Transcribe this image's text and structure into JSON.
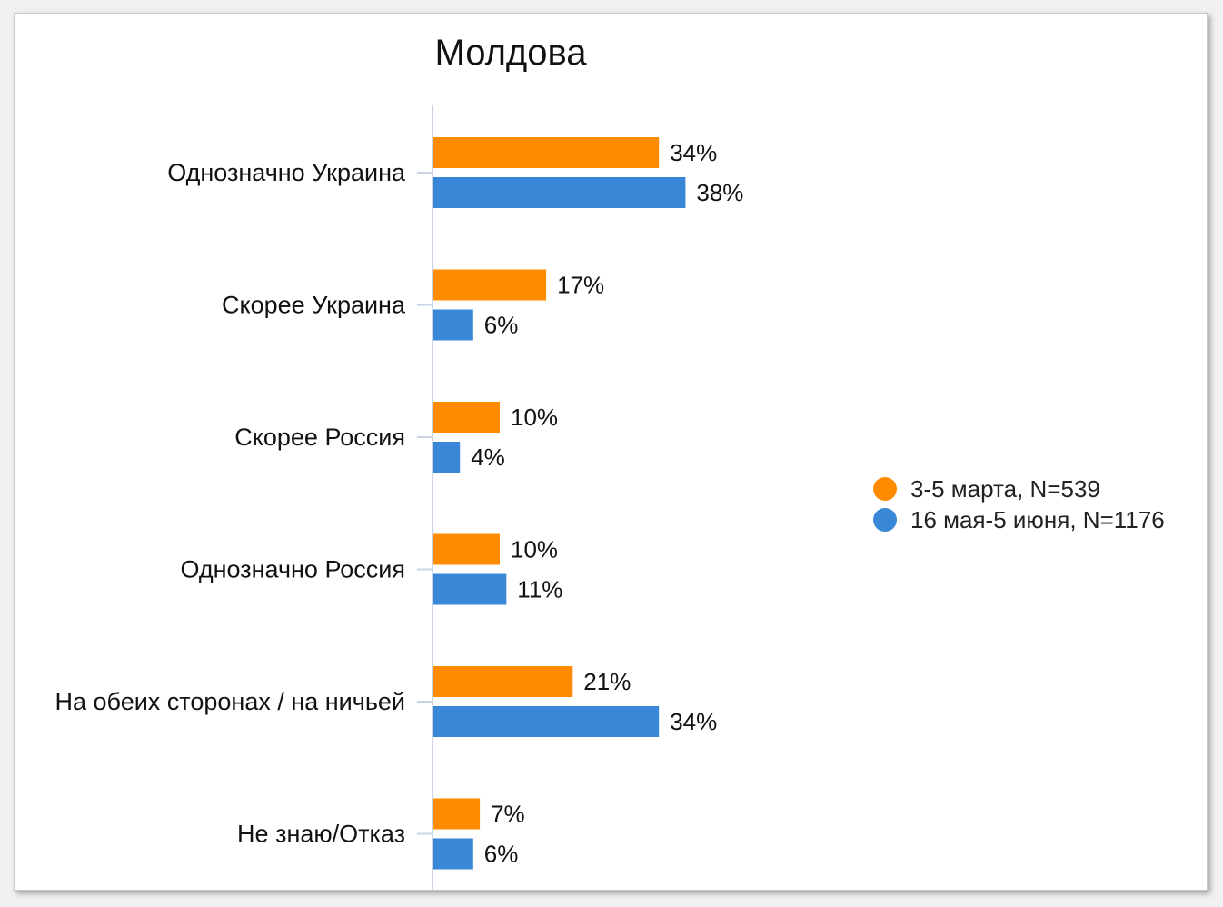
{
  "chart_data": {
    "type": "bar",
    "orientation": "horizontal",
    "title": "Молдова",
    "categories": [
      "Однозначно Украина",
      "Скорее Украина",
      "Скорее Россия",
      "Однозначно Россия",
      "На обеих сторонах / на ничьей",
      "Не знаю/Отказ"
    ],
    "series": [
      {
        "name": "3-5 марта, N=539",
        "color": "#ff8c00",
        "values": [
          34,
          17,
          10,
          10,
          21,
          7
        ],
        "labels": [
          "34%",
          "17%",
          "10%",
          "10%",
          "21%",
          "7%"
        ]
      },
      {
        "name": "16 мая-5 июня, N=1176",
        "color": "#3a87d8",
        "values": [
          38,
          6,
          4,
          11,
          34,
          6
        ],
        "labels": [
          "38%",
          "6%",
          "4%",
          "11%",
          "34%",
          "6%"
        ]
      }
    ],
    "unit": "%",
    "grid": false,
    "legend_position": "right"
  }
}
